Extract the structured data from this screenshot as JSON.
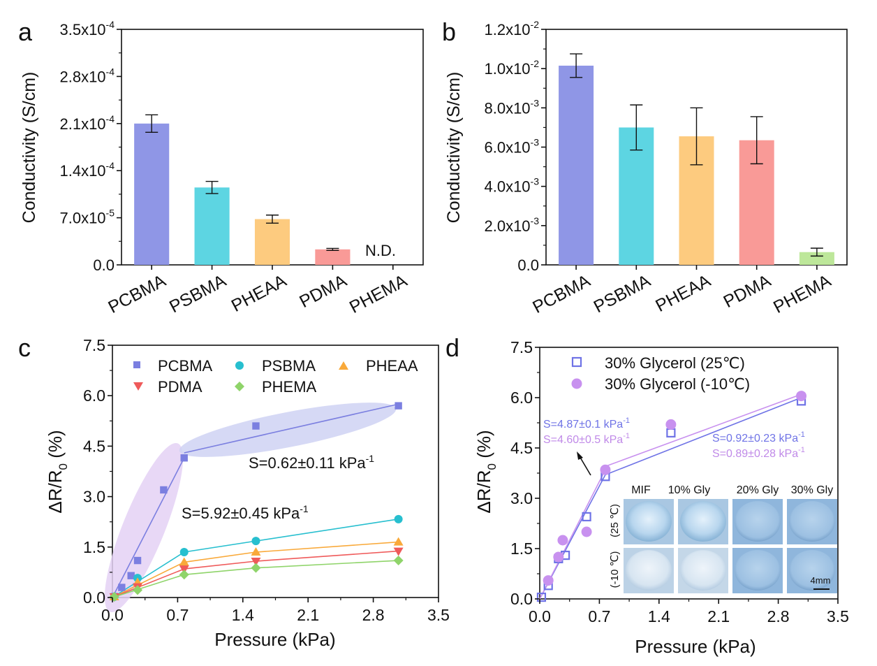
{
  "panels": [
    {
      "label": "a"
    },
    {
      "label": "b"
    },
    {
      "label": "c"
    },
    {
      "label": "d"
    }
  ],
  "chart_data": [
    {
      "type": "bar",
      "panel": "a",
      "categories": [
        "PCBMA",
        "PSBMA",
        "PHEAA",
        "PDMA",
        "PHEMA"
      ],
      "values": [
        0.00021,
        0.000115,
        6.8e-05,
        2.3e-05,
        null
      ],
      "errors": [
        1.3e-05,
        9e-06,
        6e-06,
        1.5e-06,
        null
      ],
      "colors": [
        "#8f96e6",
        "#5dd5e2",
        "#fdcb7f",
        "#f99a97",
        "#bde79a"
      ],
      "ylabel": "Conductivity (S/cm)",
      "ylim": [
        0,
        0.00035
      ],
      "yticks": [
        0,
        7e-05,
        0.00014,
        0.00021,
        0.00028,
        0.00035
      ],
      "ytick_labels": [
        {
          "base": "0.0",
          "exp": ""
        },
        {
          "base": "7.0x10",
          "exp": "-5"
        },
        {
          "base": "1.4x10",
          "exp": "-4"
        },
        {
          "base": "2.1x10",
          "exp": "-4"
        },
        {
          "base": "2.8x10",
          "exp": "-4"
        },
        {
          "base": "3.5x10",
          "exp": "-4"
        }
      ],
      "annotations": [
        {
          "text": "N.D.",
          "category": "PHEMA"
        }
      ]
    },
    {
      "type": "bar",
      "panel": "b",
      "categories": [
        "PCBMA",
        "PSBMA",
        "PHEAA",
        "PDMA",
        "PHEMA"
      ],
      "values": [
        0.01015,
        0.007,
        0.00655,
        0.00635,
        0.00065
      ],
      "errors": [
        0.0006,
        0.00115,
        0.00145,
        0.0012,
        0.0002
      ],
      "colors": [
        "#8f96e6",
        "#5dd5e2",
        "#fdcb7f",
        "#f99a97",
        "#bde79a"
      ],
      "ylabel": "Conductivity (S/cm)",
      "ylim": [
        0,
        0.012
      ],
      "yticks": [
        0,
        0.002,
        0.004,
        0.006,
        0.008,
        0.01,
        0.012
      ],
      "ytick_labels": [
        {
          "base": "0.0",
          "exp": ""
        },
        {
          "base": "2.0x10",
          "exp": "-3"
        },
        {
          "base": "4.0x10",
          "exp": "-3"
        },
        {
          "base": "6.0x10",
          "exp": "-3"
        },
        {
          "base": "8.0x10",
          "exp": "-3"
        },
        {
          "base": "1.0x10",
          "exp": "-2"
        },
        {
          "base": "1.2x10",
          "exp": "-2"
        }
      ]
    },
    {
      "type": "scatter",
      "panel": "c",
      "xlabel": "Pressure (kPa)",
      "ylabel": "ΔR/R",
      "ylabel_sub": "0",
      "ylabel_suffix": " (%)",
      "xlim": [
        0,
        3.5
      ],
      "ylim": [
        0,
        7.5
      ],
      "xticks": [
        0.0,
        0.7,
        1.4,
        2.1,
        2.8,
        3.5
      ],
      "yticks": [
        0.0,
        1.5,
        3.0,
        4.5,
        6.0,
        7.5
      ],
      "xtick_labels": [
        "0.0",
        "0.7",
        "1.4",
        "2.1",
        "2.8",
        "3.5"
      ],
      "ytick_labels": [
        "0.0",
        "1.5",
        "3.0",
        "4.5",
        "6.0",
        "7.5"
      ],
      "series": [
        {
          "name": "PCBMA",
          "marker": "square",
          "color": "#7b7fe0",
          "x": [
            0.02,
            0.1,
            0.2,
            0.27,
            0.55,
            0.77,
            1.54,
            3.07
          ],
          "y": [
            0.03,
            0.3,
            0.65,
            1.1,
            3.2,
            4.15,
            5.1,
            5.7
          ],
          "fit": [
            [
              [
                0.0,
                0.0
              ],
              [
                0.77,
                4.15
              ]
            ],
            [
              [
                0.77,
                4.3
              ],
              [
                3.07,
                5.75
              ]
            ]
          ]
        },
        {
          "name": "PSBMA",
          "marker": "circle",
          "color": "#27bfcf",
          "x": [
            0.02,
            0.27,
            0.77,
            1.54,
            3.07
          ],
          "y": [
            0.02,
            0.58,
            1.35,
            1.68,
            2.33
          ],
          "fit": [
            [
              [
                0.0,
                0.0
              ],
              [
                0.77,
                1.35
              ],
              [
                1.54,
                1.68
              ],
              [
                3.07,
                2.33
              ]
            ]
          ]
        },
        {
          "name": "PHEAA",
          "marker": "triangle-up",
          "color": "#f9a93a",
          "x": [
            0.02,
            0.27,
            0.77,
            1.54,
            3.07
          ],
          "y": [
            0.02,
            0.45,
            1.05,
            1.35,
            1.65
          ],
          "fit": [
            [
              [
                0.0,
                0.0
              ],
              [
                0.77,
                1.05
              ],
              [
                1.54,
                1.35
              ],
              [
                3.07,
                1.65
              ]
            ]
          ]
        },
        {
          "name": "PDMA",
          "marker": "triangle-down",
          "color": "#ef5a5a",
          "x": [
            0.02,
            0.27,
            0.77,
            1.54,
            3.07
          ],
          "y": [
            0.02,
            0.32,
            0.85,
            1.08,
            1.38
          ],
          "fit": [
            [
              [
                0.0,
                0.0
              ],
              [
                0.77,
                0.85
              ],
              [
                1.54,
                1.08
              ],
              [
                3.07,
                1.38
              ]
            ]
          ]
        },
        {
          "name": "PHEMA",
          "marker": "diamond",
          "color": "#8fd46a",
          "x": [
            0.02,
            0.27,
            0.77,
            1.54,
            3.07
          ],
          "y": [
            0.02,
            0.22,
            0.68,
            0.88,
            1.1
          ],
          "fit": [
            [
              [
                0.0,
                0.0
              ],
              [
                0.77,
                0.68
              ],
              [
                1.54,
                0.88
              ],
              [
                3.07,
                1.1
              ]
            ]
          ]
        }
      ],
      "annotations": [
        {
          "text": "S=5.92±0.45 kPa",
          "exp": "-1",
          "color": "#111111"
        },
        {
          "text": "S=0.62±0.11 kPa",
          "exp": "-1",
          "color": "#111111"
        }
      ]
    },
    {
      "type": "scatter",
      "panel": "d",
      "xlabel": "Pressure (kPa)",
      "ylabel": "ΔR/R",
      "ylabel_sub": "0",
      "ylabel_suffix": " (%)",
      "xlim": [
        0,
        3.5
      ],
      "ylim": [
        0,
        7.5
      ],
      "xticks": [
        0.0,
        0.7,
        1.4,
        2.1,
        2.8,
        3.5
      ],
      "yticks": [
        0.0,
        1.5,
        3.0,
        4.5,
        6.0,
        7.5
      ],
      "xtick_labels": [
        "0.0",
        "0.7",
        "1.4",
        "2.1",
        "2.8",
        "3.5"
      ],
      "ytick_labels": [
        "0.0",
        "1.5",
        "3.0",
        "4.5",
        "6.0",
        "7.5"
      ],
      "series": [
        {
          "name": "30% Glycerol (25℃)",
          "marker": "open-square",
          "color": "#6f73e6",
          "x": [
            0.02,
            0.1,
            0.22,
            0.3,
            0.55,
            0.77,
            1.54,
            3.07
          ],
          "y": [
            0.05,
            0.4,
            1.2,
            1.3,
            2.45,
            3.65,
            4.95,
            5.9
          ],
          "fit": [
            [
              [
                0.0,
                0.0
              ],
              [
                0.77,
                3.7
              ]
            ],
            [
              [
                0.77,
                3.7
              ],
              [
                3.07,
                6.0
              ]
            ]
          ]
        },
        {
          "name": "30% Glycerol (-10℃)",
          "marker": "filled-circle",
          "color": "#c891ef",
          "x": [
            0.1,
            0.22,
            0.27,
            0.55,
            0.77,
            1.54,
            3.07
          ],
          "y": [
            0.55,
            1.25,
            1.75,
            2.0,
            3.85,
            5.2,
            6.05
          ],
          "fit": [
            [
              [
                0.0,
                0.0
              ],
              [
                0.77,
                3.85
              ]
            ],
            [
              [
                0.77,
                3.95
              ],
              [
                3.07,
                6.1
              ]
            ]
          ]
        }
      ],
      "annotations": [
        {
          "text": "S=4.87±0.1 kPa",
          "exp": "-1",
          "color": "#6f73e6"
        },
        {
          "text": "S=4.60±0.5 kPa",
          "exp": "-1",
          "color": "#c08ae8"
        },
        {
          "text": "S=0.92±0.23 kPa",
          "exp": "-1",
          "color": "#6f73e6"
        },
        {
          "text": "S=0.89±0.28 kPa",
          "exp": "-1",
          "color": "#c08ae8"
        }
      ],
      "inset": {
        "columns": [
          "MIF",
          "10% Gly",
          "20% Gly",
          "30% Gly"
        ],
        "rows": [
          "(25 ℃)",
          "(-10 ℃)"
        ],
        "scale_bar": "4mm"
      }
    }
  ]
}
